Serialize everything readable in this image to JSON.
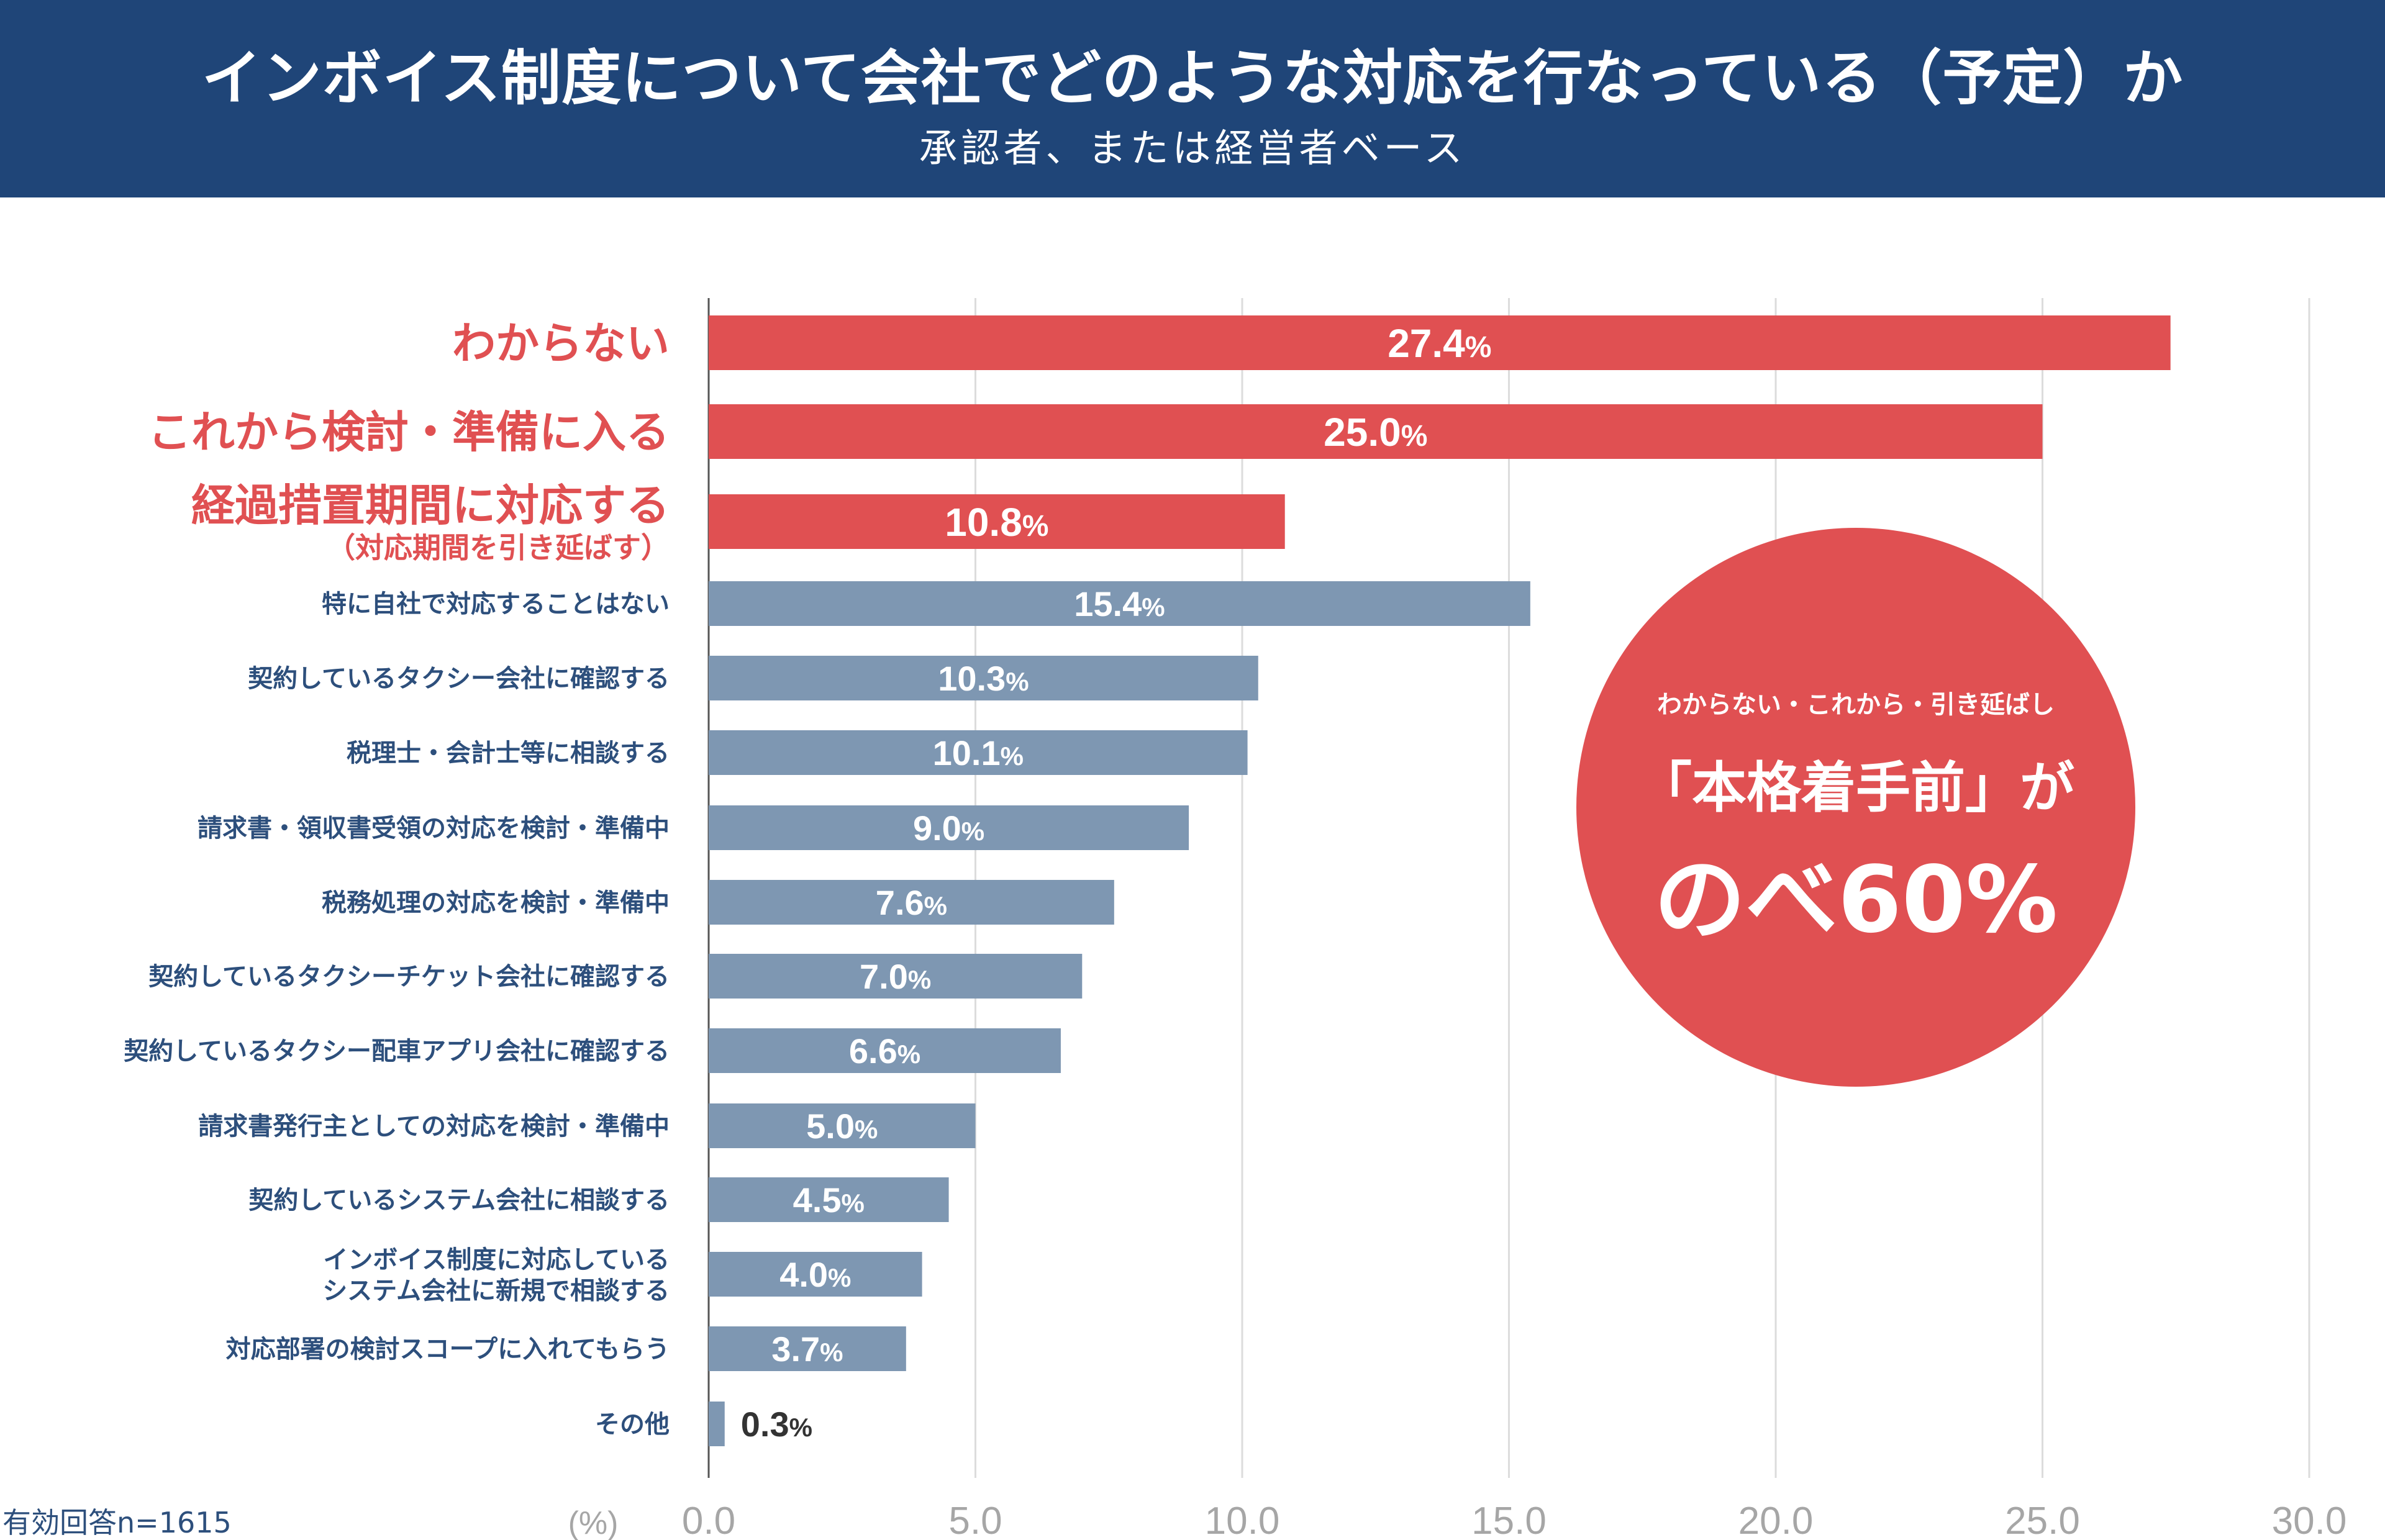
{
  "header": {
    "title": "インボイス制度について会社でどのような対応を行なっている（予定）か",
    "subtitle": "承認者、または経営者ベース"
  },
  "callout": {
    "sub": "わからない・これから・引き延ばし",
    "main": "「本格着手前」が",
    "big": "のべ60%"
  },
  "footnote": "有効回答n=1615",
  "colors": {
    "header_bg": "#1f4578",
    "highlight": "#e05052",
    "bar_default": "#7e97b2",
    "label_default": "#2d4f7c",
    "axis_text": "#a6a6a6"
  },
  "chart_data": {
    "type": "bar",
    "orientation": "horizontal",
    "unit_label": "(%)",
    "xlim": [
      0,
      30
    ],
    "xticks": [
      "0.0",
      "5.0",
      "10.0",
      "15.0",
      "20.0",
      "25.0",
      "30.0"
    ],
    "grid": true,
    "categories": [
      {
        "label": "わからない",
        "sublabel": "",
        "value": 27.4,
        "highlight": true
      },
      {
        "label": "これから検討・準備に入る",
        "sublabel": "",
        "value": 25.0,
        "highlight": true
      },
      {
        "label": "経過措置期間に対応する",
        "sublabel": "（対応期間を引き延ばす）",
        "value": 10.8,
        "highlight": true
      },
      {
        "label": "特に自社で対応することはない",
        "sublabel": "",
        "value": 15.4,
        "highlight": false
      },
      {
        "label": "契約しているタクシー会社に確認する",
        "sublabel": "",
        "value": 10.3,
        "highlight": false
      },
      {
        "label": "税理士・会計士等に相談する",
        "sublabel": "",
        "value": 10.1,
        "highlight": false
      },
      {
        "label": "請求書・領収書受領の対応を検討・準備中",
        "sublabel": "",
        "value": 9.0,
        "highlight": false
      },
      {
        "label": "税務処理の対応を検討・準備中",
        "sublabel": "",
        "value": 7.6,
        "highlight": false
      },
      {
        "label": "契約しているタクシーチケット会社に確認する",
        "sublabel": "",
        "value": 7.0,
        "highlight": false
      },
      {
        "label": "契約しているタクシー配車アプリ会社に確認する",
        "sublabel": "",
        "value": 6.6,
        "highlight": false
      },
      {
        "label": "請求書発行主としての対応を検討・準備中",
        "sublabel": "",
        "value": 5.0,
        "highlight": false
      },
      {
        "label": "契約しているシステム会社に相談する",
        "sublabel": "",
        "value": 4.5,
        "highlight": false
      },
      {
        "label": "インボイス制度に対応している",
        "sublabel": "システム会社に新規で相談する",
        "value": 4.0,
        "highlight": false
      },
      {
        "label": "対応部署の検討スコープに入れてもらう",
        "sublabel": "",
        "value": 3.7,
        "highlight": false
      },
      {
        "label": "その他",
        "sublabel": "",
        "value": 0.3,
        "highlight": false
      }
    ]
  }
}
